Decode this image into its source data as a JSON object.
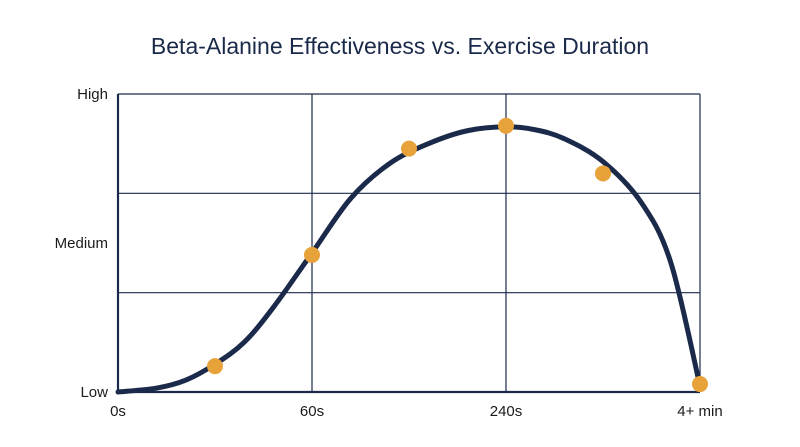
{
  "chart_data": {
    "type": "line",
    "title": "Beta-Alanine Effectiveness vs. Exercise Duration",
    "xlabel": "",
    "ylabel": "",
    "x_ticks": [
      "0s",
      "60s",
      "240s",
      "4+ min"
    ],
    "y_ticks": [
      "Low",
      "Medium",
      "High"
    ],
    "xlim": [
      0,
      3
    ],
    "ylim": [
      0,
      3
    ],
    "grid": true,
    "colors": {
      "line": "#1b2a4a",
      "marker": "#e8a23a",
      "grid": "#1b2a4a",
      "axis": "#1b2a4a"
    },
    "series": [
      {
        "curve": [
          [
            0,
            0
          ],
          [
            0.2,
            0.04
          ],
          [
            0.35,
            0.12
          ],
          [
            0.5,
            0.28
          ],
          [
            0.65,
            0.5
          ],
          [
            0.8,
            0.85
          ],
          [
            1.0,
            1.4
          ],
          [
            1.2,
            1.95
          ],
          [
            1.4,
            2.3
          ],
          [
            1.6,
            2.5
          ],
          [
            1.8,
            2.63
          ],
          [
            2.0,
            2.67
          ],
          [
            2.15,
            2.64
          ],
          [
            2.3,
            2.55
          ],
          [
            2.5,
            2.32
          ],
          [
            2.7,
            1.9
          ],
          [
            2.85,
            1.3
          ],
          [
            3.0,
            0.06
          ]
        ],
        "markers": [
          {
            "x": 0.5,
            "y": 0.26
          },
          {
            "x": 1.0,
            "y": 1.38
          },
          {
            "x": 1.5,
            "y": 2.45
          },
          {
            "x": 2.0,
            "y": 2.68
          },
          {
            "x": 2.5,
            "y": 2.2
          },
          {
            "x": 3.0,
            "y": 0.08
          }
        ]
      }
    ]
  }
}
